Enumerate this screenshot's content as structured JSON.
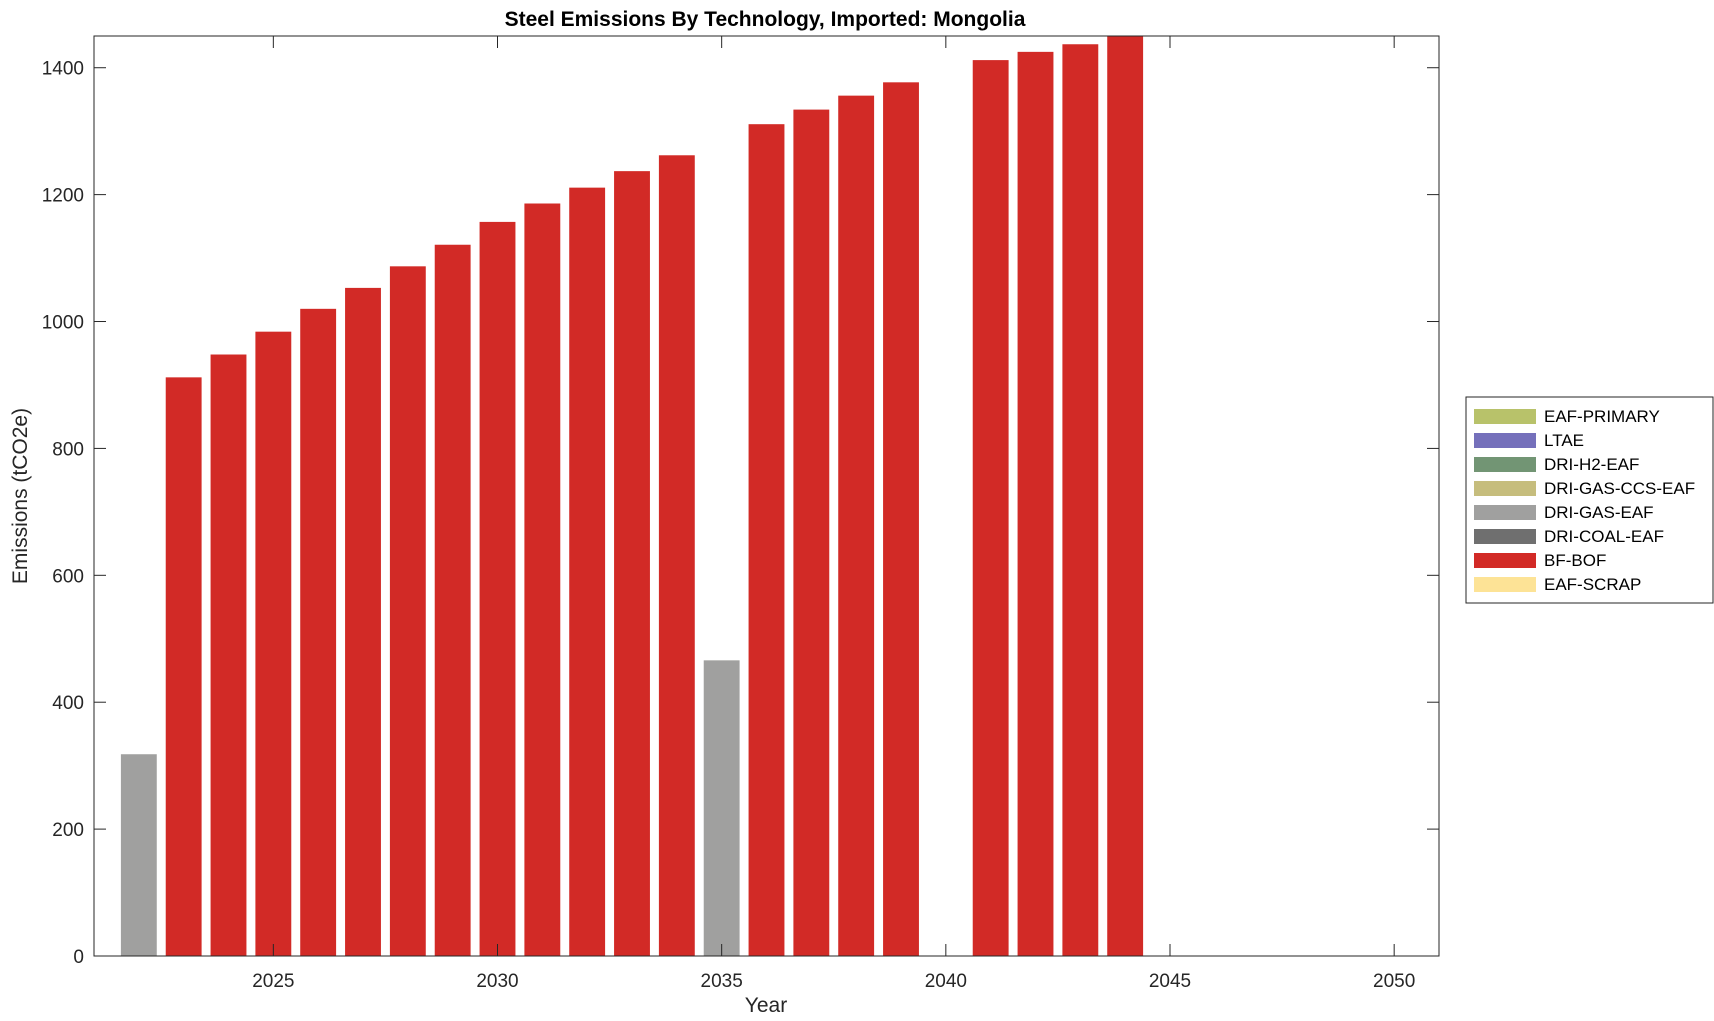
{
  "chart_data": {
    "type": "bar",
    "stacked": true,
    "title": "Steel Emissions By Technology, Imported: Mongolia",
    "xlabel": "Year",
    "ylabel": "Emissions (tCO2e)",
    "xlim": [
      2021,
      2051
    ],
    "ylim": [
      0,
      1450
    ],
    "xticks": [
      2025,
      2030,
      2035,
      2040,
      2045,
      2050
    ],
    "yticks": [
      0,
      200,
      400,
      600,
      800,
      1000,
      1200,
      1400
    ],
    "grid": false,
    "legend_position": "outside-right",
    "categories": [
      2022,
      2023,
      2024,
      2025,
      2026,
      2027,
      2028,
      2029,
      2030,
      2031,
      2032,
      2033,
      2034,
      2035,
      2036,
      2037,
      2038,
      2039,
      2040,
      2041,
      2042,
      2043,
      2044,
      2045,
      2046,
      2047,
      2048,
      2049,
      2050
    ],
    "series": [
      {
        "name": "EAF-PRIMARY",
        "color": "#b8c26a",
        "values": [
          0,
          0,
          0,
          0,
          0,
          0,
          0,
          0,
          0,
          0,
          0,
          0,
          0,
          0,
          0,
          0,
          0,
          0,
          0,
          0,
          0,
          0,
          0,
          0,
          0,
          0,
          0,
          0,
          0
        ]
      },
      {
        "name": "LTAE",
        "color": "#7570bb",
        "values": [
          0,
          0,
          0,
          0,
          0,
          0,
          0,
          0,
          0,
          0,
          0,
          0,
          0,
          0,
          0,
          0,
          0,
          0,
          0,
          0,
          0,
          0,
          0,
          0,
          0,
          0,
          0,
          0,
          0
        ]
      },
      {
        "name": "DRI-H2-EAF",
        "color": "#729574",
        "values": [
          0,
          0,
          0,
          0,
          0,
          0,
          0,
          0,
          0,
          0,
          0,
          0,
          0,
          0,
          0,
          0,
          0,
          0,
          0,
          0,
          0,
          0,
          0,
          0,
          0,
          0,
          0,
          0,
          0
        ]
      },
      {
        "name": "DRI-GAS-CCS-EAF",
        "color": "#c6bd7d",
        "values": [
          0,
          0,
          0,
          0,
          0,
          0,
          0,
          0,
          0,
          0,
          0,
          0,
          0,
          0,
          0,
          0,
          0,
          0,
          0,
          0,
          0,
          0,
          0,
          0,
          0,
          0,
          0,
          0,
          0
        ]
      },
      {
        "name": "DRI-GAS-EAF",
        "color": "#a0a09f",
        "values": [
          318,
          0,
          0,
          0,
          0,
          0,
          0,
          0,
          0,
          0,
          0,
          0,
          0,
          466,
          0,
          0,
          0,
          0,
          0,
          0,
          0,
          0,
          0,
          0,
          0,
          0,
          0,
          0,
          0
        ]
      },
      {
        "name": "DRI-COAL-EAF",
        "color": "#6f6f6f",
        "values": [
          0,
          0,
          0,
          0,
          0,
          0,
          0,
          0,
          0,
          0,
          0,
          0,
          0,
          0,
          0,
          0,
          0,
          0,
          0,
          0,
          0,
          0,
          0,
          0,
          0,
          0,
          0,
          0,
          0
        ]
      },
      {
        "name": "BF-BOF",
        "color": "#d22a26",
        "values": [
          0,
          912,
          948,
          984,
          1020,
          1053,
          1087,
          1121,
          1157,
          1186,
          1211,
          1237,
          1262,
          0,
          1311,
          1334,
          1356,
          1377,
          0,
          1412,
          1425,
          1437,
          1450,
          0,
          0,
          0,
          0,
          0,
          0
        ]
      },
      {
        "name": "EAF-SCRAP",
        "color": "#fde396",
        "values": [
          0,
          0,
          0,
          0,
          0,
          0,
          0,
          0,
          0,
          0,
          0,
          0,
          0,
          0,
          0,
          0,
          0,
          0,
          0,
          0,
          0,
          0,
          0,
          0,
          0,
          0,
          0,
          0,
          0
        ]
      }
    ]
  }
}
